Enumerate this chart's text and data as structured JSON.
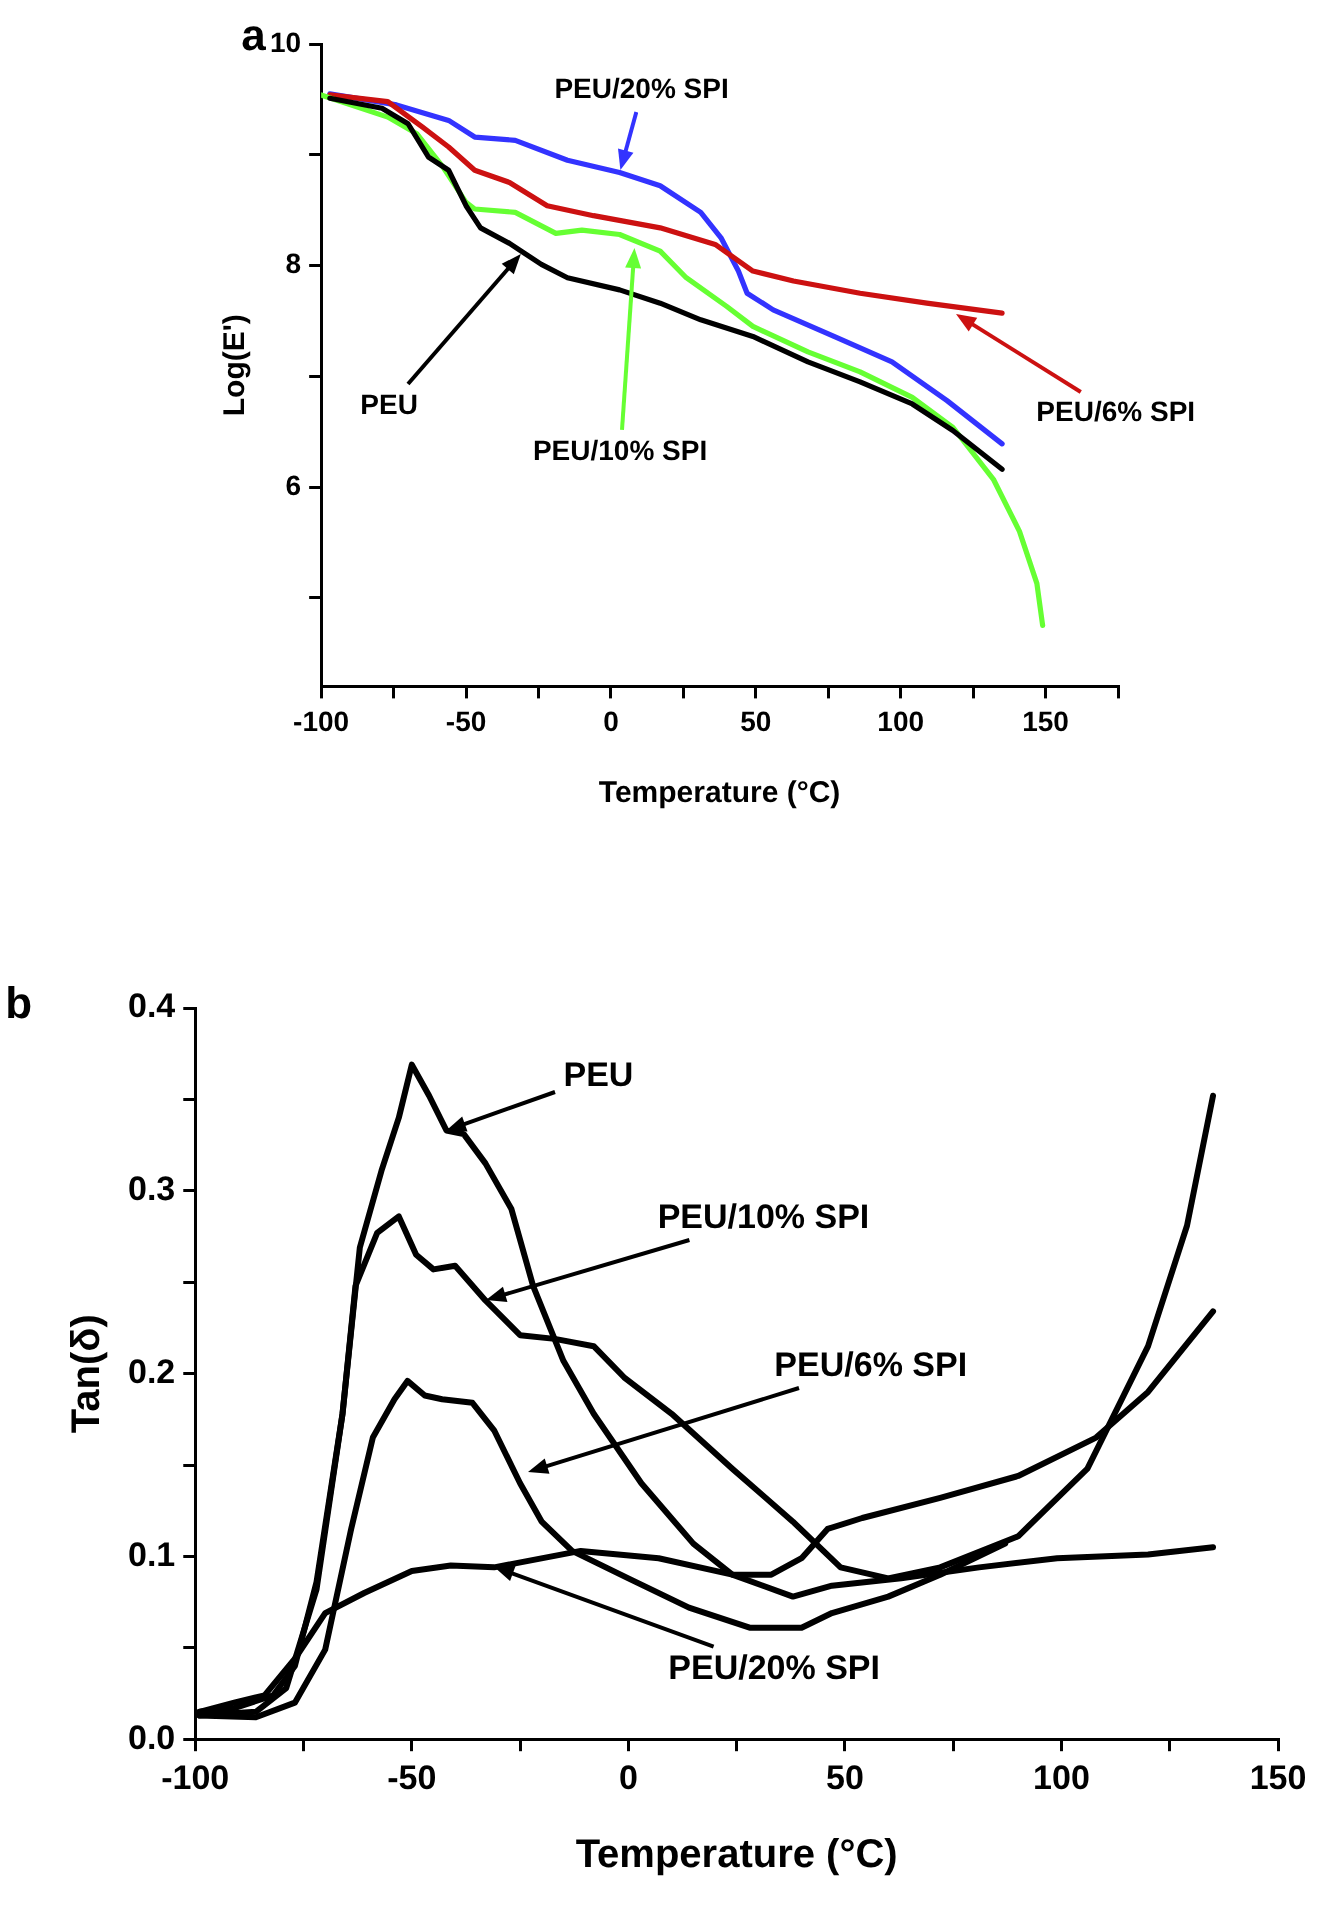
{
  "chart_data": [
    {
      "type": "line",
      "title": "a",
      "xlabel": "Temperature (°C)",
      "ylabel": "Log(E')",
      "xlim": [
        -100,
        175
      ],
      "ylim": [
        4.2,
        10
      ],
      "xticks": [
        -100,
        {
          "value": -75,
          "label": null
        },
        -50,
        {
          "value": -25,
          "label": null
        },
        0,
        {
          "value": 25,
          "label": null
        },
        50,
        {
          "value": 75,
          "label": null
        },
        100,
        {
          "value": 125,
          "label": null
        },
        150,
        {
          "value": 175,
          "label": null
        }
      ],
      "yticks": [
        {
          "value": 5,
          "label": null
        },
        6,
        {
          "value": 7,
          "label": null
        },
        8,
        {
          "value": 9,
          "label": null
        },
        10
      ],
      "grid": false,
      "legend": false,
      "marker": "none",
      "line_style": "solid",
      "annotations": [
        {
          "text": "PEU/20% SPI",
          "x": 3,
          "y": 8.86
        },
        {
          "text": "PEU",
          "x": -31,
          "y": 8.1
        },
        {
          "text": "PEU/10% SPI",
          "x": 8,
          "y": 8.16
        },
        {
          "text": "PEU/6% SPI",
          "x": 119,
          "y": 7.57
        }
      ],
      "series": [
        {
          "color": "#000000",
          "x": [
            -97,
            -79,
            -70,
            -63,
            -56,
            -50,
            -45,
            -35,
            -24,
            -15,
            3,
            17,
            31,
            49,
            68,
            86,
            104,
            118,
            135
          ],
          "values": [
            9.51,
            9.42,
            9.28,
            8.98,
            8.86,
            8.54,
            8.34,
            8.2,
            8.01,
            7.89,
            7.78,
            7.66,
            7.51,
            7.36,
            7.13,
            6.95,
            6.75,
            6.51,
            6.16
          ]
        },
        {
          "color": "#66ff33",
          "x": [
            -100,
            -77,
            -67,
            -58,
            -50,
            -47,
            -33,
            -19,
            -10,
            3,
            17,
            26,
            40,
            49,
            68,
            86,
            104,
            118,
            132,
            141,
            147,
            149
          ],
          "values": [
            9.54,
            9.34,
            9.19,
            8.89,
            8.57,
            8.51,
            8.48,
            8.29,
            8.32,
            8.28,
            8.13,
            7.89,
            7.63,
            7.45,
            7.22,
            7.04,
            6.81,
            6.54,
            6.07,
            5.6,
            5.13,
            4.75
          ]
        },
        {
          "color": "#cc1111",
          "x": [
            -97,
            -77,
            -65,
            -56,
            -47,
            -35,
            -22,
            -6,
            17,
            36,
            49,
            63,
            86,
            109,
            135
          ],
          "values": [
            9.54,
            9.48,
            9.25,
            9.07,
            8.86,
            8.75,
            8.54,
            8.45,
            8.34,
            8.19,
            7.95,
            7.86,
            7.75,
            7.66,
            7.57
          ]
        },
        {
          "color": "#3333ff",
          "x": [
            -97,
            -74,
            -56,
            -47,
            -33,
            -15,
            3,
            17,
            31,
            38,
            44,
            47,
            56,
            77,
            97,
            116,
            135
          ],
          "values": [
            9.55,
            9.45,
            9.31,
            9.16,
            9.13,
            8.95,
            8.84,
            8.72,
            8.48,
            8.25,
            7.95,
            7.75,
            7.6,
            7.36,
            7.13,
            6.78,
            6.39
          ]
        }
      ]
    },
    {
      "type": "line",
      "title": "b",
      "xlabel": "Temperature (°C)",
      "ylabel": "Tan(δ)",
      "xlim": [
        -100,
        150
      ],
      "ylim": [
        0,
        0.4
      ],
      "xticks": [
        -100,
        {
          "value": -75,
          "label": null
        },
        -50,
        {
          "value": -25,
          "label": null
        },
        0,
        {
          "value": 25,
          "label": null
        },
        50,
        {
          "value": 75,
          "label": null
        },
        100,
        {
          "value": 125,
          "label": null
        },
        150
      ],
      "yticks": [
        {
          "value": 0,
          "label": "0.0"
        },
        {
          "value": 0.05,
          "label": null
        },
        0.1,
        {
          "value": 0.15,
          "label": null
        },
        0.2,
        {
          "value": 0.25,
          "label": null
        },
        0.3,
        {
          "value": 0.35,
          "label": null
        },
        0.4
      ],
      "grid": false,
      "legend": false,
      "marker": "none",
      "line_style": "solid",
      "annotations": [
        {
          "text": "PEU",
          "x": -42,
          "y": 0.333
        },
        {
          "text": "PEU/10% SPI",
          "x": -33,
          "y": 0.24
        },
        {
          "text": "PEU/6% SPI",
          "x": -23,
          "y": 0.146
        },
        {
          "text": "PEU/20% SPI",
          "x": -31,
          "y": 0.094
        }
      ],
      "series": [
        {
          "color": "#000000",
          "x": [
            -99,
            -91,
            -82,
            -77,
            -72,
            -66,
            -62,
            -57,
            -53,
            -50,
            -46,
            -42,
            -38,
            -33,
            -27,
            -22,
            -15,
            -8,
            3,
            15,
            24,
            33,
            40,
            46,
            54,
            72,
            90,
            108,
            120,
            135
          ],
          "values": [
            0.015,
            0.017,
            0.024,
            0.04,
            0.086,
            0.178,
            0.269,
            0.311,
            0.34,
            0.369,
            0.352,
            0.333,
            0.331,
            0.315,
            0.29,
            0.248,
            0.207,
            0.178,
            0.14,
            0.107,
            0.09,
            0.09,
            0.099,
            0.115,
            0.121,
            0.132,
            0.144,
            0.165,
            0.19,
            0.234
          ]
        },
        {
          "color": "#000000",
          "x": [
            -99,
            -86,
            -79,
            -72,
            -66,
            -63,
            -58,
            -53,
            -49,
            -45,
            -40,
            -33,
            -25,
            -17,
            -8,
            -1,
            10,
            24,
            38,
            49,
            60,
            72,
            90,
            106,
            120,
            129,
            135
          ],
          "values": [
            0.013,
            0.015,
            0.028,
            0.082,
            0.178,
            0.248,
            0.277,
            0.286,
            0.265,
            0.257,
            0.259,
            0.24,
            0.221,
            0.219,
            0.215,
            0.198,
            0.178,
            0.148,
            0.119,
            0.094,
            0.088,
            0.094,
            0.111,
            0.148,
            0.215,
            0.281,
            0.352
          ]
        },
        {
          "color": "#000000",
          "x": [
            -99,
            -86,
            -77,
            -70,
            -64,
            -59,
            -54,
            -51,
            -47,
            -43,
            -36,
            -31,
            -25,
            -20,
            -13,
            0,
            14,
            28,
            40,
            47,
            60,
            72,
            87
          ],
          "values": [
            0.013,
            0.012,
            0.02,
            0.049,
            0.115,
            0.165,
            0.186,
            0.196,
            0.188,
            0.186,
            0.184,
            0.169,
            0.14,
            0.119,
            0.103,
            0.088,
            0.072,
            0.061,
            0.061,
            0.069,
            0.078,
            0.09,
            0.107
          ]
        },
        {
          "color": "#000000",
          "x": [
            -99,
            -91,
            -84,
            -77,
            -70,
            -61,
            -50,
            -41,
            -31,
            -11,
            7,
            24,
            38,
            47,
            63,
            81,
            99,
            120,
            135
          ],
          "values": [
            0.015,
            0.02,
            0.024,
            0.044,
            0.069,
            0.08,
            0.092,
            0.095,
            0.094,
            0.103,
            0.099,
            0.09,
            0.078,
            0.084,
            0.088,
            0.094,
            0.099,
            0.101,
            0.105
          ]
        }
      ]
    }
  ]
}
